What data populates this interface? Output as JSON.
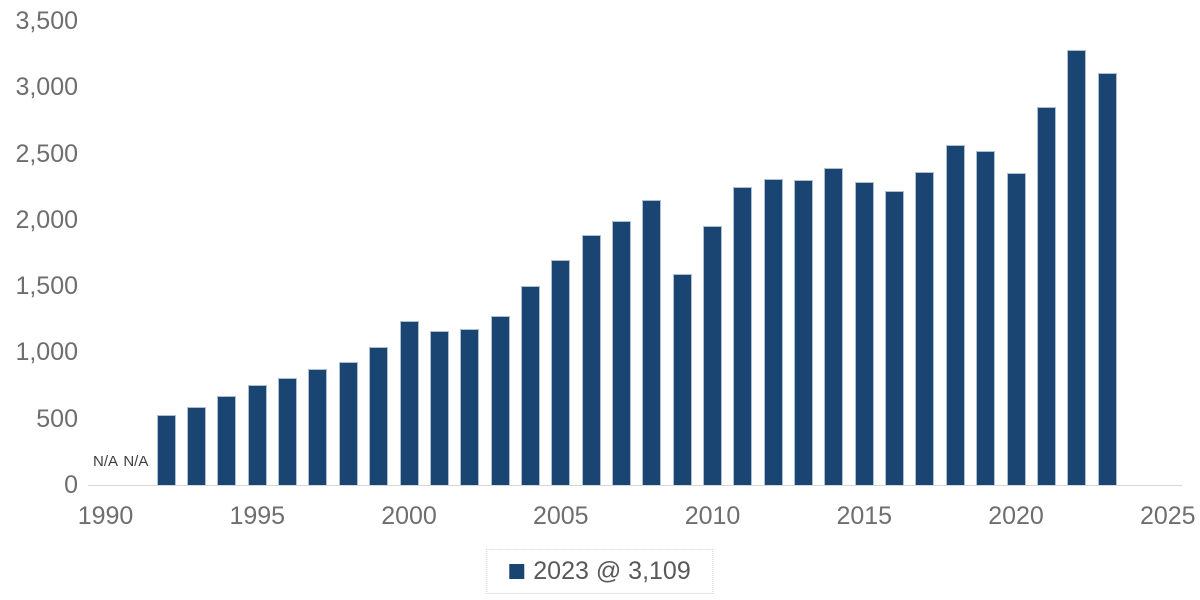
{
  "chart_data": {
    "type": "bar",
    "title": "",
    "xlabel": "",
    "ylabel": "",
    "x": [
      1990,
      1991,
      1992,
      1993,
      1994,
      1995,
      1996,
      1997,
      1998,
      1999,
      2000,
      2001,
      2002,
      2003,
      2004,
      2005,
      2006,
      2007,
      2008,
      2009,
      2010,
      2011,
      2012,
      2013,
      2014,
      2015,
      2016,
      2017,
      2018,
      2019,
      2020,
      2021,
      2022,
      2023
    ],
    "values": [
      null,
      null,
      530,
      590,
      672,
      753,
      810,
      878,
      928,
      1042,
      1238,
      1160,
      1174,
      1276,
      1500,
      1700,
      1884,
      1995,
      2150,
      1588,
      1950,
      2245,
      2307,
      2300,
      2392,
      2284,
      2219,
      2362,
      2565,
      2518,
      2355,
      2855,
      3285,
      3109
    ],
    "na_label": "N/A",
    "na_years": [
      1990,
      1991
    ],
    "y_ticks": [
      0,
      500,
      1000,
      1500,
      2000,
      2500,
      3000,
      3500
    ],
    "x_ticks": [
      1990,
      1995,
      2000,
      2005,
      2010,
      2015,
      2020,
      2025
    ],
    "ylim": [
      0,
      3500
    ],
    "xlim": [
      1989.5,
      2025.5
    ],
    "grid": false,
    "legend_position": "bottom",
    "legend": "2023 @ 3,109",
    "colors": {
      "bar_fill": "#1a4472",
      "bar_border": "#aebfd0",
      "axis_line": "#d6d6d6",
      "tick_text": "#6e6e6e",
      "na_text": "#3f3f3f",
      "legend_text": "#595959",
      "legend_border": "#d2d2d2"
    }
  }
}
